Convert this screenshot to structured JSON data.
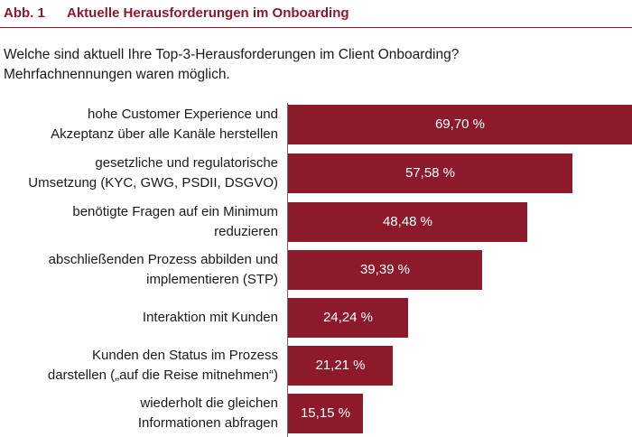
{
  "figure": {
    "number": "Abb. 1",
    "title": "Aktuelle Herausforderungen im Onboarding",
    "accent_color": "#8c1a2a"
  },
  "question": {
    "line1": "Welche sind aktuell Ihre Top-3-Herausforderungen im Client Onboarding?",
    "line2": "Mehrfachnennungen waren möglich."
  },
  "chart_data": {
    "type": "bar",
    "orientation": "horizontal",
    "bar_color": "#8c1a2a",
    "xlim": [
      0,
      69.7
    ],
    "categories": [
      [
        "hohe Customer Experience und",
        "Akzeptanz über alle Kanäle herstellen"
      ],
      [
        "gesetzliche und regulatorische",
        "Umsetzung (KYC, GWG, PSDII, DSGVO)"
      ],
      [
        "benötigte Fragen auf ein Minimum",
        "reduzieren"
      ],
      [
        "abschließenden Prozess abbilden und",
        "implementieren (STP)"
      ],
      [
        "Interaktion mit Kunden"
      ],
      [
        "Kunden den Status im Prozess",
        "darstellen („auf die Reise mitnehmen“)"
      ],
      [
        "wiederholt die gleichen",
        "Informationen abfragen"
      ]
    ],
    "values": [
      69.7,
      57.58,
      48.48,
      39.39,
      24.24,
      21.21,
      15.15
    ],
    "value_labels": [
      "69,70 %",
      "57,58 %",
      "48,48 %",
      "39,39 %",
      "24,24 %",
      "21,21 %",
      "15,15 %"
    ]
  }
}
